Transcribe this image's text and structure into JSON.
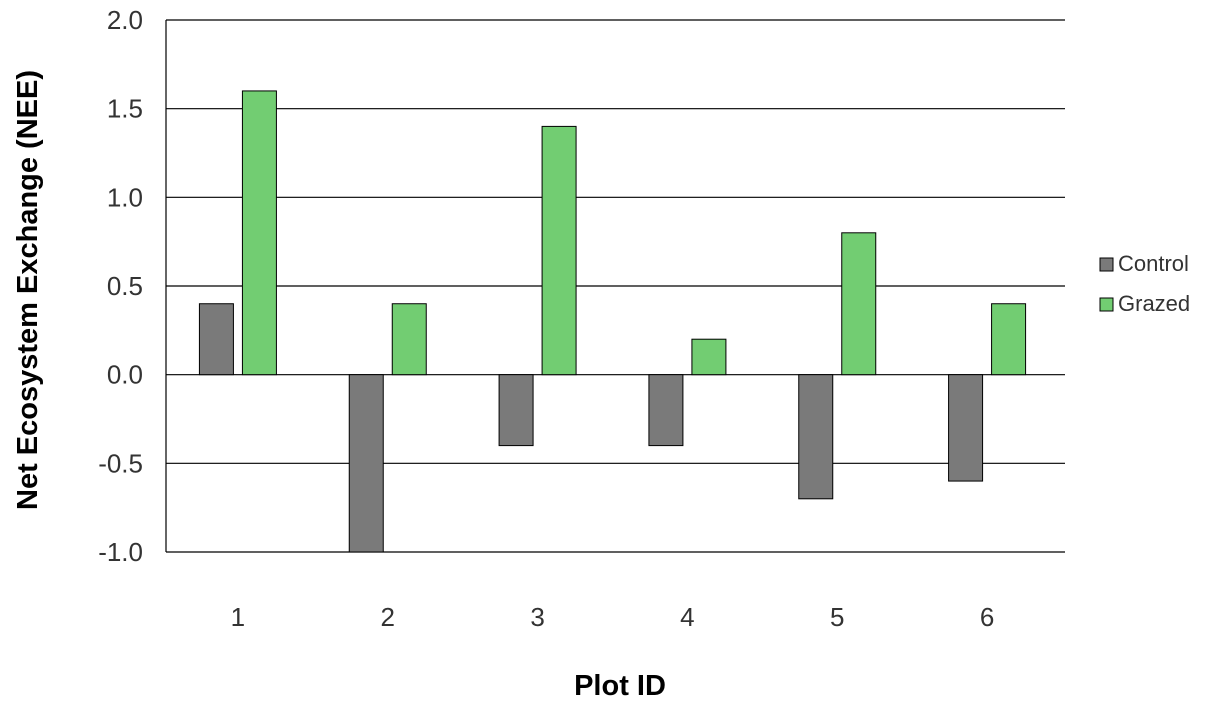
{
  "chart_data": {
    "type": "bar",
    "title": "",
    "xlabel": "Plot ID",
    "ylabel": "Net Ecosystem Exchange (NEE)",
    "categories": [
      "1",
      "2",
      "3",
      "4",
      "5",
      "6"
    ],
    "series": [
      {
        "name": "Control",
        "values": [
          0.4,
          -1.0,
          -0.4,
          -0.4,
          -0.7,
          -0.6
        ],
        "color": "#7a7a7a"
      },
      {
        "name": "Grazed",
        "values": [
          1.6,
          0.4,
          1.4,
          0.2,
          0.8,
          0.4
        ],
        "color": "#72cd72"
      }
    ],
    "ylim": [
      -1.0,
      2.0
    ],
    "yticks": [
      -1.0,
      -0.5,
      0.0,
      0.5,
      1.0,
      1.5,
      2.0
    ],
    "ytick_labels": [
      "-1.0",
      "-0.5",
      "0.0",
      "0.5",
      "1.0",
      "1.5",
      "2.0"
    ],
    "grid": true,
    "legend_position": "right"
  }
}
